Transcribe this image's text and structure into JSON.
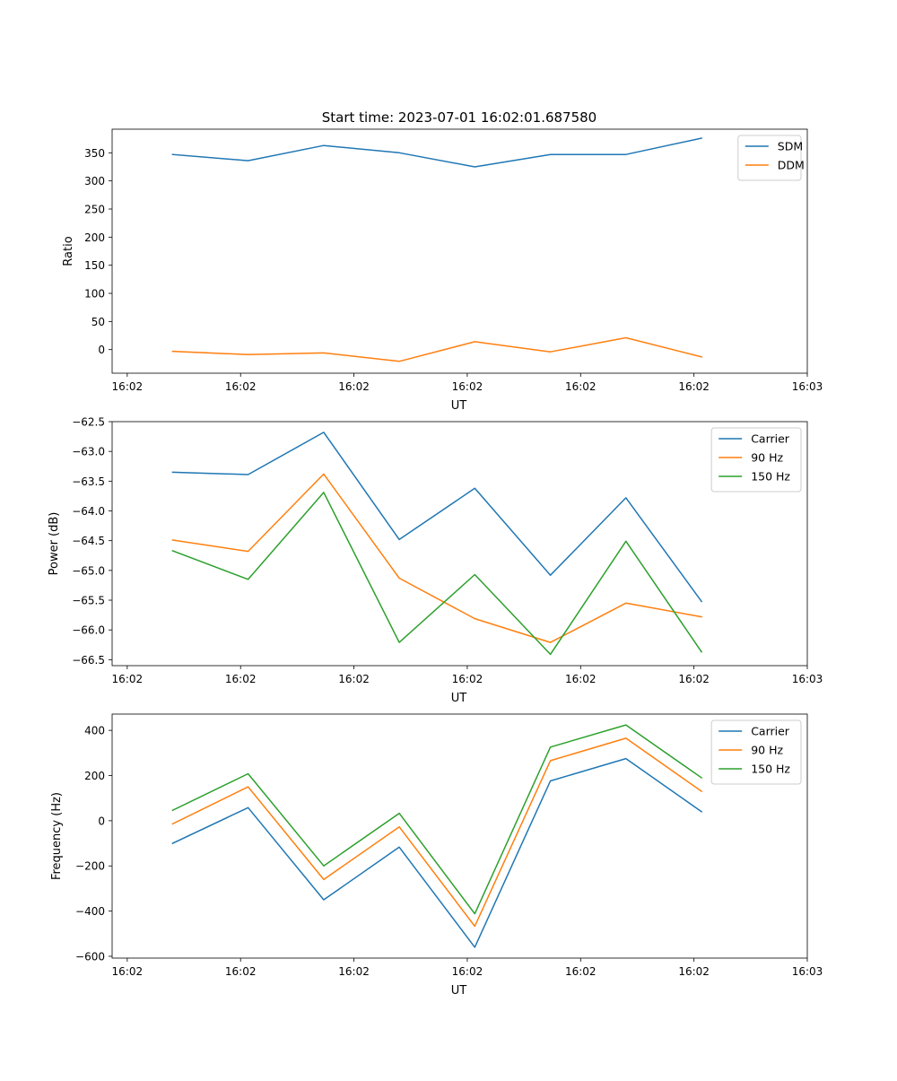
{
  "figure_title": "Start time: 2023-07-01 16:02:01.687580",
  "chart_data": [
    {
      "type": "line",
      "title": "Start time: 2023-07-01 16:02:01.687580",
      "xlabel": "UT",
      "ylabel": "Ratio",
      "xlim": [
        0.5,
        9.7
      ],
      "ylim": [
        -42,
        392
      ],
      "x": [
        1.3,
        2.3,
        3.3,
        4.3,
        5.3,
        6.3,
        7.3,
        8.3
      ],
      "x_ticks": [
        0.7,
        2.2,
        3.7,
        5.2,
        6.7,
        8.2,
        9.7
      ],
      "x_tick_labels": [
        "16:02",
        "16:02",
        "16:02",
        "16:02",
        "16:02",
        "16:02",
        "16:03"
      ],
      "y_ticks": [
        0,
        50,
        100,
        150,
        200,
        250,
        300,
        350
      ],
      "y_tick_labels": [
        "0",
        "50",
        "100",
        "150",
        "200",
        "250",
        "300",
        "350"
      ],
      "legend_position": "top-right",
      "series": [
        {
          "name": "SDM",
          "color": "#1f77b4",
          "values": [
            347,
            336,
            363,
            350,
            325,
            347,
            347,
            376
          ]
        },
        {
          "name": "DDM",
          "color": "#ff7f0e",
          "values": [
            -3,
            -9,
            -6,
            -21,
            14,
            -4,
            21,
            -13
          ]
        }
      ]
    },
    {
      "type": "line",
      "title": "",
      "xlabel": "UT",
      "ylabel": "Power (dB)",
      "xlim": [
        0.5,
        9.7
      ],
      "ylim": [
        -66.6,
        -62.5
      ],
      "x": [
        1.3,
        2.3,
        3.3,
        4.3,
        5.3,
        6.3,
        7.3,
        8.3
      ],
      "x_ticks": [
        0.7,
        2.2,
        3.7,
        5.2,
        6.7,
        8.2,
        9.7
      ],
      "x_tick_labels": [
        "16:02",
        "16:02",
        "16:02",
        "16:02",
        "16:02",
        "16:02",
        "16:03"
      ],
      "y_ticks": [
        -62.5,
        -63.0,
        -63.5,
        -64.0,
        -64.5,
        -65.0,
        -65.5,
        -66.0,
        -66.5
      ],
      "y_tick_labels": [
        "−62.5",
        "−63.0",
        "−63.5",
        "−64.0",
        "−64.5",
        "−65.0",
        "−65.5",
        "−66.0",
        "−66.5"
      ],
      "legend_position": "top-right",
      "series": [
        {
          "name": "Carrier",
          "color": "#1f77b4",
          "values": [
            -63.35,
            -63.39,
            -62.68,
            -64.48,
            -63.62,
            -65.08,
            -63.78,
            -65.52
          ]
        },
        {
          "name": "90 Hz",
          "color": "#ff7f0e",
          "values": [
            -64.49,
            -64.68,
            -63.38,
            -65.13,
            -65.81,
            -66.21,
            -65.55,
            -65.78
          ]
        },
        {
          "name": "150 Hz",
          "color": "#2ca02c",
          "values": [
            -64.67,
            -65.15,
            -63.69,
            -66.21,
            -65.07,
            -66.41,
            -64.51,
            -66.37
          ]
        }
      ]
    },
    {
      "type": "line",
      "title": "",
      "xlabel": "UT",
      "ylabel": "Frequency (Hz)",
      "xlim": [
        0.5,
        9.7
      ],
      "ylim": [
        -608,
        472
      ],
      "x": [
        1.3,
        2.3,
        3.3,
        4.3,
        5.3,
        6.3,
        7.3,
        8.3
      ],
      "x_ticks": [
        0.7,
        2.2,
        3.7,
        5.2,
        6.7,
        8.2,
        9.7
      ],
      "x_tick_labels": [
        "16:02",
        "16:02",
        "16:02",
        "16:02",
        "16:02",
        "16:02",
        "16:03"
      ],
      "y_ticks": [
        400,
        200,
        0,
        -200,
        -400,
        -600
      ],
      "y_tick_labels": [
        "400",
        "200",
        "0",
        "−200",
        "−400",
        "−600"
      ],
      "legend_position": "top-right",
      "series": [
        {
          "name": "Carrier",
          "color": "#1f77b4",
          "values": [
            -100,
            58,
            -350,
            -117,
            -560,
            176,
            275,
            40
          ]
        },
        {
          "name": "90 Hz",
          "color": "#ff7f0e",
          "values": [
            -14,
            150,
            -260,
            -27,
            -467,
            266,
            365,
            130
          ]
        },
        {
          "name": "150 Hz",
          "color": "#2ca02c",
          "values": [
            46,
            208,
            -200,
            33,
            -412,
            326,
            424,
            190
          ]
        }
      ]
    }
  ]
}
